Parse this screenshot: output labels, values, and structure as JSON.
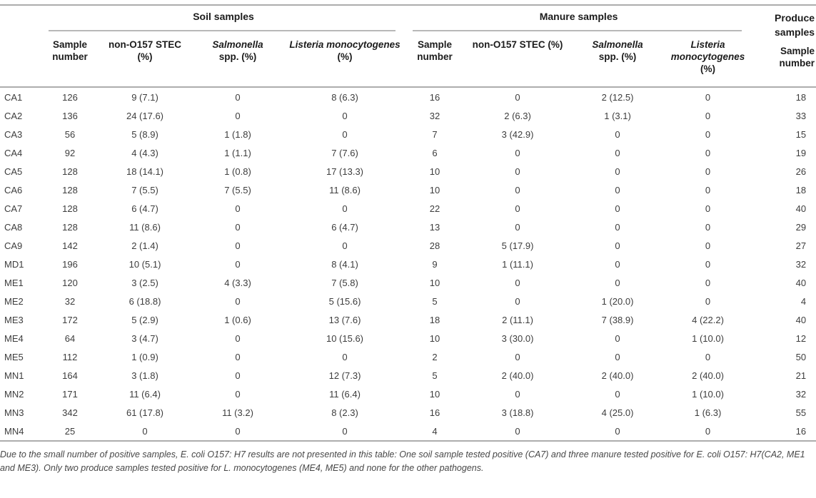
{
  "table": {
    "groups": [
      "Soil samples",
      "Manure samples",
      "Produce samples"
    ],
    "columns": {
      "sample_number": "Sample number",
      "stec": "non-O157 STEC (%)",
      "salmonella_italic": "Salmonella",
      "salmonella_rest": "spp. (%)",
      "listeria_italic": "Listeria monocytogenes",
      "listeria_rest": "(%)"
    },
    "produce_column": "Sample number",
    "rows": [
      {
        "id": "CA1",
        "soil": [
          "126",
          "9 (7.1)",
          "0",
          "8 (6.3)"
        ],
        "manure": [
          "16",
          "0",
          "2 (12.5)",
          "0"
        ],
        "produce": "18"
      },
      {
        "id": "CA2",
        "soil": [
          "136",
          "24 (17.6)",
          "0",
          "0"
        ],
        "manure": [
          "32",
          "2 (6.3)",
          "1 (3.1)",
          "0"
        ],
        "produce": "33"
      },
      {
        "id": "CA3",
        "soil": [
          "56",
          "5 (8.9)",
          "1 (1.8)",
          "0"
        ],
        "manure": [
          "7",
          "3 (42.9)",
          "0",
          "0"
        ],
        "produce": "15"
      },
      {
        "id": "CA4",
        "soil": [
          "92",
          "4 (4.3)",
          "1 (1.1)",
          "7 (7.6)"
        ],
        "manure": [
          "6",
          "0",
          "0",
          "0"
        ],
        "produce": "19"
      },
      {
        "id": "CA5",
        "soil": [
          "128",
          "18 (14.1)",
          "1 (0.8)",
          "17 (13.3)"
        ],
        "manure": [
          "10",
          "0",
          "0",
          "0"
        ],
        "produce": "26"
      },
      {
        "id": "CA6",
        "soil": [
          "128",
          "7 (5.5)",
          "7 (5.5)",
          "11 (8.6)"
        ],
        "manure": [
          "10",
          "0",
          "0",
          "0"
        ],
        "produce": "18"
      },
      {
        "id": "CA7",
        "soil": [
          "128",
          "6 (4.7)",
          "0",
          "0"
        ],
        "manure": [
          "22",
          "0",
          "0",
          "0"
        ],
        "produce": "40"
      },
      {
        "id": "CA8",
        "soil": [
          "128",
          "11 (8.6)",
          "0",
          "6 (4.7)"
        ],
        "manure": [
          "13",
          "0",
          "0",
          "0"
        ],
        "produce": "29"
      },
      {
        "id": "CA9",
        "soil": [
          "142",
          "2 (1.4)",
          "0",
          "0"
        ],
        "manure": [
          "28",
          "5 (17.9)",
          "0",
          "0"
        ],
        "produce": "27"
      },
      {
        "id": "MD1",
        "soil": [
          "196",
          "10 (5.1)",
          "0",
          "8 (4.1)"
        ],
        "manure": [
          "9",
          "1 (11.1)",
          "0",
          "0"
        ],
        "produce": "32"
      },
      {
        "id": "ME1",
        "soil": [
          "120",
          "3 (2.5)",
          "4 (3.3)",
          "7 (5.8)"
        ],
        "manure": [
          "10",
          "0",
          "0",
          "0"
        ],
        "produce": "40"
      },
      {
        "id": "ME2",
        "soil": [
          "32",
          "6 (18.8)",
          "0",
          "5 (15.6)"
        ],
        "manure": [
          "5",
          "0",
          "1 (20.0)",
          "0"
        ],
        "produce": "4"
      },
      {
        "id": "ME3",
        "soil": [
          "172",
          "5 (2.9)",
          "1 (0.6)",
          "13 (7.6)"
        ],
        "manure": [
          "18",
          "2 (11.1)",
          "7 (38.9)",
          "4 (22.2)"
        ],
        "produce": "40"
      },
      {
        "id": "ME4",
        "soil": [
          "64",
          "3 (4.7)",
          "0",
          "10 (15.6)"
        ],
        "manure": [
          "10",
          "3 (30.0)",
          "0",
          "1 (10.0)"
        ],
        "produce": "12"
      },
      {
        "id": "ME5",
        "soil": [
          "112",
          "1 (0.9)",
          "0",
          "0"
        ],
        "manure": [
          "2",
          "0",
          "0",
          "0"
        ],
        "produce": "50"
      },
      {
        "id": "MN1",
        "soil": [
          "164",
          "3 (1.8)",
          "0",
          "12 (7.3)"
        ],
        "manure": [
          "5",
          "2 (40.0)",
          "2 (40.0)",
          "2 (40.0)"
        ],
        "produce": "21"
      },
      {
        "id": "MN2",
        "soil": [
          "171",
          "11 (6.4)",
          "0",
          "11 (6.4)"
        ],
        "manure": [
          "10",
          "0",
          "0",
          "1 (10.0)"
        ],
        "produce": "32"
      },
      {
        "id": "MN3",
        "soil": [
          "342",
          "61 (17.8)",
          "11 (3.2)",
          "8 (2.3)"
        ],
        "manure": [
          "16",
          "3 (18.8)",
          "4 (25.0)",
          "1 (6.3)"
        ],
        "produce": "55"
      },
      {
        "id": "MN4",
        "soil": [
          "25",
          "0",
          "0",
          "0"
        ],
        "manure": [
          "4",
          "0",
          "0",
          "0"
        ],
        "produce": "16"
      }
    ],
    "footnote": "Due to the small number of positive samples, E. coli O157: H7 results are not presented in this table: One soil sample tested positive (CA7) and three manure tested positive for E. coli O157: H7(CA2, ME1 and ME3). Only two produce samples tested positive for L. monocytogenes (ME4, ME5) and none for the other pathogens."
  },
  "colors": {
    "rule_gray": "#adadad",
    "header_text": "#1c1c1c",
    "body_text": "#3d3d3d",
    "footnote_text": "#474747",
    "background": "#ffffff"
  }
}
